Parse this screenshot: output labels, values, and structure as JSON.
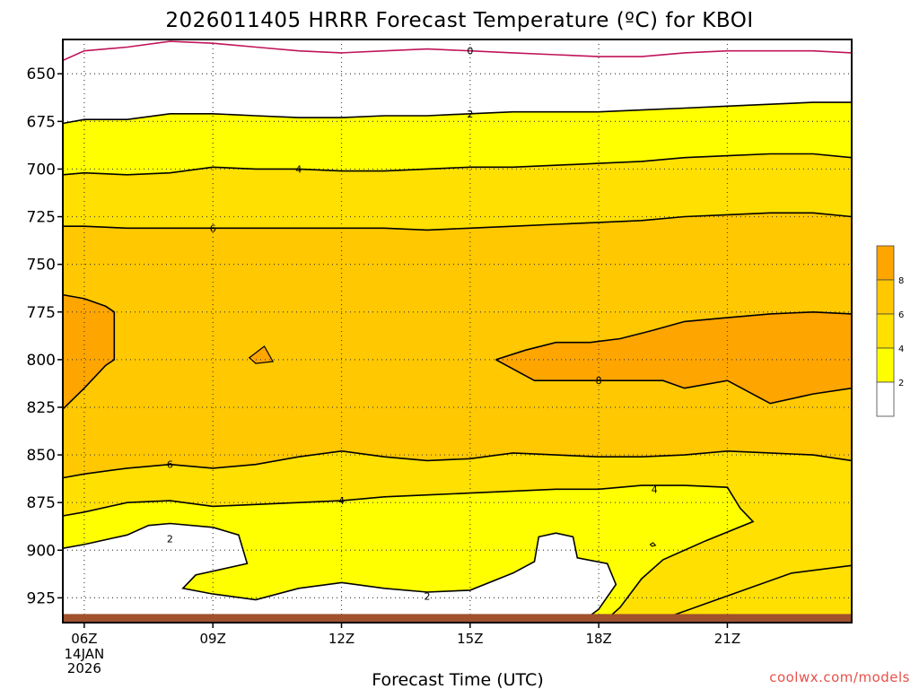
{
  "chart_data": {
    "type": "contour",
    "title": "2026011405 HRRR Forecast Temperature (ºC) for KBOI",
    "xlabel": "Forecast Time (UTC)",
    "x_ticks": [
      {
        "label": "06Z",
        "sub": [
          "14JAN",
          "2026"
        ]
      },
      {
        "label": "09Z",
        "sub": []
      },
      {
        "label": "12Z",
        "sub": []
      },
      {
        "label": "15Z",
        "sub": []
      },
      {
        "label": "18Z",
        "sub": []
      },
      {
        "label": "21Z",
        "sub": []
      }
    ],
    "x_range_hours": [
      5.5,
      23.9
    ],
    "y_ticks": [
      650,
      675,
      700,
      725,
      750,
      775,
      800,
      825,
      850,
      875,
      900,
      925
    ],
    "y_range_hpa": [
      632,
      938
    ],
    "grid": true,
    "contour_interval": 2,
    "colorbar": {
      "levels": [
        2,
        4,
        6,
        8
      ],
      "colors": [
        "#ffffff",
        "#ffff00",
        "#ffe000",
        "#ffc800",
        "#ffa500"
      ]
    },
    "contours": [
      {
        "value": 0,
        "color": "#c0145a",
        "labels": [
          {
            "x": 15.0,
            "p": 638
          }
        ],
        "points": [
          [
            5.5,
            643
          ],
          [
            6.0,
            638
          ],
          [
            7.0,
            636
          ],
          [
            8.0,
            633
          ],
          [
            9.0,
            634
          ],
          [
            10.0,
            636
          ],
          [
            11.0,
            638
          ],
          [
            12.0,
            639
          ],
          [
            13.0,
            638
          ],
          [
            14.0,
            637
          ],
          [
            15.0,
            638
          ],
          [
            16.0,
            639
          ],
          [
            17.0,
            640
          ],
          [
            18.0,
            641
          ],
          [
            19.0,
            641
          ],
          [
            20.0,
            639
          ],
          [
            21.0,
            638
          ],
          [
            22.0,
            638
          ],
          [
            23.0,
            638
          ],
          [
            23.9,
            639
          ]
        ]
      },
      {
        "value": 2,
        "color": "#000000",
        "labels": [
          {
            "x": 15.0,
            "p": 671
          }
        ],
        "points": [
          [
            5.5,
            676
          ],
          [
            6.0,
            674
          ],
          [
            7.0,
            674
          ],
          [
            8.0,
            671
          ],
          [
            9.0,
            671
          ],
          [
            10.0,
            672
          ],
          [
            11.0,
            673
          ],
          [
            12.0,
            673
          ],
          [
            13.0,
            672
          ],
          [
            14.0,
            672
          ],
          [
            15.0,
            671
          ],
          [
            16.0,
            670
          ],
          [
            17.0,
            670
          ],
          [
            18.0,
            670
          ],
          [
            19.0,
            669
          ],
          [
            20.0,
            668
          ],
          [
            21.0,
            667
          ],
          [
            22.0,
            666
          ],
          [
            23.0,
            665
          ],
          [
            23.9,
            665
          ]
        ]
      },
      {
        "value": 4,
        "color": "#000000",
        "labels": [
          {
            "x": 11.0,
            "p": 700
          }
        ],
        "points": [
          [
            5.5,
            703
          ],
          [
            6.0,
            702
          ],
          [
            7.0,
            703
          ],
          [
            8.0,
            702
          ],
          [
            9.0,
            699
          ],
          [
            10.0,
            700
          ],
          [
            11.0,
            700
          ],
          [
            12.0,
            701
          ],
          [
            13.0,
            701
          ],
          [
            14.0,
            700
          ],
          [
            15.0,
            699
          ],
          [
            16.0,
            699
          ],
          [
            17.0,
            698
          ],
          [
            18.0,
            697
          ],
          [
            19.0,
            696
          ],
          [
            20.0,
            694
          ],
          [
            21.0,
            693
          ],
          [
            22.0,
            692
          ],
          [
            23.0,
            692
          ],
          [
            23.9,
            694
          ]
        ]
      },
      {
        "value": 6,
        "color": "#000000",
        "labels": [
          {
            "x": 9.0,
            "p": 731
          }
        ],
        "points": [
          [
            5.5,
            730
          ],
          [
            6.0,
            730
          ],
          [
            7.0,
            731
          ],
          [
            8.0,
            731
          ],
          [
            9.0,
            731
          ],
          [
            10.0,
            731
          ],
          [
            11.0,
            731
          ],
          [
            12.0,
            731
          ],
          [
            13.0,
            731
          ],
          [
            14.0,
            732
          ],
          [
            15.0,
            731
          ],
          [
            16.0,
            730
          ],
          [
            17.0,
            729
          ],
          [
            18.0,
            728
          ],
          [
            19.0,
            727
          ],
          [
            20.0,
            725
          ],
          [
            21.0,
            724
          ],
          [
            22.0,
            723
          ],
          [
            23.0,
            723
          ],
          [
            23.9,
            725
          ]
        ]
      },
      {
        "value": 8,
        "color": "#000000",
        "labels": [
          {
            "x": 18.0,
            "p": 811
          }
        ],
        "points": [
          [
            15.6,
            800
          ],
          [
            16.3,
            795
          ],
          [
            17.0,
            791
          ],
          [
            17.8,
            791
          ],
          [
            18.5,
            789
          ],
          [
            19.2,
            785
          ],
          [
            20.0,
            780
          ],
          [
            21.0,
            778
          ],
          [
            22.0,
            776
          ],
          [
            23.0,
            775
          ],
          [
            23.9,
            776
          ]
        ],
        "points2": [
          [
            15.6,
            800
          ],
          [
            16.5,
            811
          ],
          [
            17.5,
            811
          ],
          [
            18.5,
            811
          ],
          [
            19.5,
            811
          ],
          [
            20.0,
            815
          ],
          [
            21.0,
            811
          ],
          [
            22.0,
            823
          ],
          [
            23.0,
            818
          ],
          [
            23.9,
            815
          ]
        ]
      },
      {
        "value": 8,
        "color": "#000000",
        "labels": [],
        "points": [
          [
            5.5,
            826
          ],
          [
            6.0,
            815
          ],
          [
            6.5,
            803
          ],
          [
            6.7,
            800
          ],
          [
            6.7,
            775
          ],
          [
            6.5,
            772
          ],
          [
            6.0,
            768
          ],
          [
            5.5,
            766
          ]
        ]
      },
      {
        "value": 6,
        "color": "#000000",
        "labels": [
          {
            "x": 8.0,
            "p": 855
          }
        ],
        "points": [
          [
            5.5,
            862
          ],
          [
            6.0,
            860
          ],
          [
            7.0,
            857
          ],
          [
            8.0,
            855
          ],
          [
            9.0,
            857
          ],
          [
            10.0,
            855
          ],
          [
            11.0,
            851
          ],
          [
            12.0,
            848
          ],
          [
            13.0,
            851
          ],
          [
            14.0,
            853
          ],
          [
            15.0,
            852
          ],
          [
            16.0,
            849
          ],
          [
            17.0,
            850
          ],
          [
            18.0,
            851
          ],
          [
            19.0,
            851
          ],
          [
            20.0,
            850
          ],
          [
            21.0,
            848
          ],
          [
            22.0,
            849
          ],
          [
            23.0,
            850
          ],
          [
            23.9,
            853
          ]
        ]
      },
      {
        "value": 4,
        "color": "#000000",
        "labels": [
          {
            "x": 12.0,
            "p": 874
          },
          {
            "x": 19.3,
            "p": 868
          }
        ],
        "points": [
          [
            5.5,
            882
          ],
          [
            6.0,
            880
          ],
          [
            7.0,
            875
          ],
          [
            8.0,
            874
          ],
          [
            9.0,
            877
          ],
          [
            10.0,
            876
          ],
          [
            11.0,
            875
          ],
          [
            12.0,
            874
          ],
          [
            13.0,
            872
          ],
          [
            14.0,
            871
          ],
          [
            15.0,
            870
          ],
          [
            16.0,
            869
          ],
          [
            17.0,
            868
          ],
          [
            18.0,
            868
          ],
          [
            19.0,
            866
          ],
          [
            20.0,
            866
          ],
          [
            21.0,
            867
          ],
          [
            21.3,
            878
          ],
          [
            21.6,
            885
          ],
          [
            20.5,
            895
          ],
          [
            19.5,
            905
          ],
          [
            19.0,
            915
          ],
          [
            18.5,
            930
          ],
          [
            18.2,
            936
          ],
          [
            23.9,
            936
          ]
        ]
      },
      {
        "value": 2,
        "color": "#000000",
        "labels": [
          {
            "x": 8.0,
            "p": 894
          },
          {
            "x": 14.0,
            "p": 924
          }
        ],
        "points": [
          [
            5.5,
            899
          ],
          [
            6.0,
            897
          ],
          [
            7.0,
            892
          ],
          [
            7.5,
            887
          ],
          [
            8.0,
            886
          ],
          [
            9.0,
            888
          ],
          [
            9.6,
            892
          ],
          [
            9.8,
            907
          ],
          [
            8.6,
            913
          ],
          [
            8.3,
            920
          ],
          [
            9.0,
            923
          ],
          [
            10.0,
            926
          ],
          [
            11.0,
            920
          ],
          [
            12.0,
            917
          ],
          [
            13.0,
            920
          ],
          [
            14.0,
            922
          ],
          [
            15.0,
            921
          ],
          [
            16.0,
            912
          ],
          [
            16.5,
            906
          ],
          [
            16.6,
            893
          ],
          [
            17.0,
            891
          ],
          [
            17.4,
            893
          ],
          [
            17.5,
            904
          ],
          [
            18.2,
            907
          ],
          [
            18.4,
            918
          ],
          [
            18.0,
            931
          ],
          [
            17.7,
            936
          ]
        ]
      },
      {
        "value": 2,
        "color": "#000000",
        "labels": [],
        "points": [
          [
            19.5,
            936
          ],
          [
            20.5,
            928
          ],
          [
            21.5,
            920
          ],
          [
            22.5,
            912
          ],
          [
            23.9,
            908
          ]
        ]
      },
      {
        "value": 0,
        "color": "#c0145a",
        "labels": [],
        "points": [
          [
            5.7,
            934
          ],
          [
            6.5,
            934
          ],
          [
            7.5,
            934
          ]
        ]
      }
    ],
    "credit": "coolwx.com/models"
  }
}
